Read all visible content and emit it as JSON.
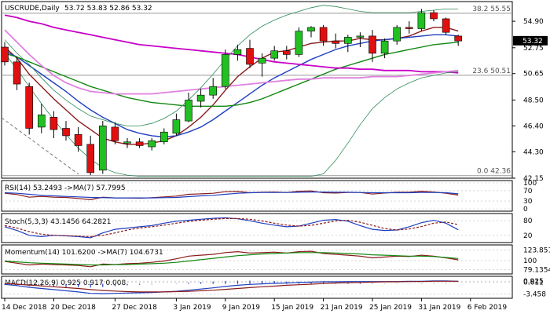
{
  "chart_data": {
    "type": "candlestick",
    "title": "USCRUDE,Daily",
    "ohlc_text": "53.72 53.83 52.86 53.32",
    "last_price": "53.32",
    "price_axis_ticks": [
      "54.90",
      "52.75",
      "50.65",
      "48.50",
      "46.40",
      "44.30",
      "42.15"
    ],
    "price_range": [
      42.15,
      56.5
    ],
    "x_tick_labels": [
      "14 Dec 2018",
      "20 Dec 2018",
      "27 Dec 2018",
      "3 Jan 2019",
      "9 Jan 2019",
      "15 Jan 2019",
      "21 Jan 2019",
      "25 Jan 2019",
      "31 Jan 2019",
      "6 Feb 2019"
    ],
    "x_tick_index": [
      0,
      4,
      9,
      14,
      18,
      22,
      26,
      30,
      34,
      38
    ],
    "fib_levels": [
      {
        "label": "38.2 55.55",
        "value": 55.55
      },
      {
        "label": "23.6 50.51",
        "value": 50.51
      },
      {
        "label": "0.0 42.36",
        "value": 42.36
      }
    ],
    "candles": [
      {
        "o": 52.8,
        "h": 53.2,
        "l": 51.3,
        "c": 51.6
      },
      {
        "o": 51.6,
        "h": 52.0,
        "l": 49.3,
        "c": 49.8
      },
      {
        "o": 49.6,
        "h": 49.9,
        "l": 45.7,
        "c": 46.2
      },
      {
        "o": 46.3,
        "h": 48.2,
        "l": 45.8,
        "c": 47.3
      },
      {
        "o": 47.1,
        "h": 47.6,
        "l": 45.4,
        "c": 46.1
      },
      {
        "o": 46.2,
        "h": 46.8,
        "l": 45.2,
        "c": 45.6
      },
      {
        "o": 45.7,
        "h": 46.3,
        "l": 44.3,
        "c": 44.8
      },
      {
        "o": 44.9,
        "h": 45.6,
        "l": 42.4,
        "c": 42.6
      },
      {
        "o": 42.8,
        "h": 46.8,
        "l": 42.5,
        "c": 46.4
      },
      {
        "o": 46.3,
        "h": 46.7,
        "l": 44.9,
        "c": 45.2
      },
      {
        "o": 45.0,
        "h": 45.4,
        "l": 44.6,
        "c": 45.1
      },
      {
        "o": 45.1,
        "h": 45.4,
        "l": 44.6,
        "c": 44.8
      },
      {
        "o": 44.7,
        "h": 45.4,
        "l": 44.4,
        "c": 45.2
      },
      {
        "o": 45.1,
        "h": 46.2,
        "l": 44.9,
        "c": 45.9
      },
      {
        "o": 45.8,
        "h": 47.4,
        "l": 45.6,
        "c": 46.9
      },
      {
        "o": 46.8,
        "h": 49.1,
        "l": 46.7,
        "c": 48.5
      },
      {
        "o": 48.4,
        "h": 49.4,
        "l": 47.9,
        "c": 48.9
      },
      {
        "o": 48.9,
        "h": 50.3,
        "l": 48.6,
        "c": 49.6
      },
      {
        "o": 49.6,
        "h": 52.6,
        "l": 49.4,
        "c": 52.2
      },
      {
        "o": 52.2,
        "h": 53.0,
        "l": 51.7,
        "c": 52.6
      },
      {
        "o": 52.7,
        "h": 53.4,
        "l": 51.1,
        "c": 51.4
      },
      {
        "o": 51.5,
        "h": 52.3,
        "l": 50.4,
        "c": 51.9
      },
      {
        "o": 51.9,
        "h": 52.9,
        "l": 51.7,
        "c": 52.5
      },
      {
        "o": 52.5,
        "h": 52.9,
        "l": 51.8,
        "c": 52.2
      },
      {
        "o": 52.2,
        "h": 54.4,
        "l": 52.0,
        "c": 54.1
      },
      {
        "o": 54.1,
        "h": 54.5,
        "l": 53.6,
        "c": 54.4
      },
      {
        "o": 54.4,
        "h": 54.6,
        "l": 52.9,
        "c": 53.3
      },
      {
        "o": 53.3,
        "h": 53.9,
        "l": 52.7,
        "c": 53.1
      },
      {
        "o": 53.1,
        "h": 53.8,
        "l": 52.4,
        "c": 53.6
      },
      {
        "o": 53.6,
        "h": 54.0,
        "l": 52.8,
        "c": 53.7
      },
      {
        "o": 53.7,
        "h": 54.2,
        "l": 51.6,
        "c": 52.3
      },
      {
        "o": 52.3,
        "h": 53.5,
        "l": 51.9,
        "c": 53.3
      },
      {
        "o": 53.3,
        "h": 54.6,
        "l": 53.0,
        "c": 54.4
      },
      {
        "o": 54.4,
        "h": 54.9,
        "l": 53.9,
        "c": 54.3
      },
      {
        "o": 54.3,
        "h": 55.9,
        "l": 54.1,
        "c": 55.6
      },
      {
        "o": 55.6,
        "h": 55.8,
        "l": 54.9,
        "c": 55.1
      },
      {
        "o": 55.1,
        "h": 55.2,
        "l": 53.8,
        "c": 54.0
      },
      {
        "o": 53.7,
        "h": 53.8,
        "l": 52.9,
        "c": 53.3
      }
    ],
    "overlays": [
      {
        "name": "ma_short",
        "color": "#8b1a1a",
        "values": [
          52.8,
          51.9,
          50.6,
          49.6,
          48.6,
          47.7,
          46.8,
          46.1,
          45.4,
          45.1,
          44.9,
          44.9,
          45.0,
          45.2,
          45.6,
          46.3,
          47.1,
          48.1,
          49.3,
          50.4,
          51.2,
          51.9,
          52.4,
          52.5,
          52.8,
          53.1,
          53.2,
          53.3,
          53.3,
          53.5,
          53.4,
          53.4,
          53.5,
          53.7,
          54.1,
          54.4,
          54.4,
          54.1
        ]
      },
      {
        "name": "ma_medium",
        "color": "#1f3fbf",
        "values": [
          52.5,
          52.0,
          51.3,
          50.6,
          49.9,
          49.2,
          48.4,
          47.7,
          47.1,
          46.6,
          46.1,
          45.8,
          45.6,
          45.5,
          45.6,
          45.9,
          46.3,
          46.9,
          47.6,
          48.3,
          49.0,
          49.7,
          50.3,
          50.8,
          51.3,
          51.8,
          52.2,
          52.6,
          52.9,
          53.1,
          53.3,
          53.4,
          53.5,
          53.6,
          53.7,
          53.8,
          53.8,
          53.7
        ]
      },
      {
        "name": "ma_long",
        "color": "#118811",
        "values": [
          52.3,
          52.0,
          51.6,
          51.2,
          50.8,
          50.4,
          50.0,
          49.6,
          49.3,
          49.0,
          48.7,
          48.5,
          48.3,
          48.2,
          48.1,
          48.0,
          48.0,
          48.0,
          48.0,
          48.1,
          48.3,
          48.6,
          49.0,
          49.4,
          49.8,
          50.2,
          50.6,
          51.0,
          51.3,
          51.6,
          51.9,
          52.2,
          52.4,
          52.6,
          52.8,
          53.0,
          53.1,
          53.2
        ]
      },
      {
        "name": "ma_magenta",
        "color": "#c800c8",
        "values": [
          55.4,
          55.2,
          54.9,
          54.7,
          54.4,
          54.2,
          54.0,
          53.8,
          53.6,
          53.4,
          53.2,
          53.0,
          52.9,
          52.8,
          52.7,
          52.6,
          52.5,
          52.4,
          52.3,
          52.2,
          52.0,
          51.8,
          51.6,
          51.5,
          51.4,
          51.3,
          51.2,
          51.1,
          51.1,
          51.0,
          51.0,
          50.9,
          50.9,
          50.9,
          50.8,
          50.8,
          50.8,
          50.7
        ]
      },
      {
        "name": "ma_pink",
        "color": "#e080e0",
        "values": [
          54.2,
          53.2,
          52.2,
          51.3,
          50.5,
          49.9,
          49.5,
          49.2,
          49.1,
          49.0,
          49.0,
          49.0,
          49.0,
          49.1,
          49.2,
          49.3,
          49.4,
          49.5,
          49.6,
          49.7,
          49.8,
          49.9,
          50.0,
          50.1,
          50.2,
          50.2,
          50.3,
          50.3,
          50.3,
          50.3,
          50.4,
          50.4,
          50.4,
          50.5,
          50.6,
          50.7,
          50.8,
          50.9
        ]
      },
      {
        "name": "bb_upper",
        "color": "#2e8b57",
        "values": [
          53.4,
          52.3,
          51.4,
          50.3,
          49.3,
          48.5,
          47.8,
          47.2,
          46.9,
          46.6,
          46.4,
          46.4,
          46.6,
          47.0,
          47.6,
          48.5,
          49.5,
          50.6,
          51.8,
          52.9,
          53.8,
          54.5,
          55.0,
          55.4,
          55.7,
          56.0,
          56.2,
          56.1,
          55.9,
          55.7,
          55.6,
          55.6,
          55.6,
          55.6,
          55.7,
          55.8,
          55.9,
          55.9
        ]
      },
      {
        "name": "bb_lower",
        "color": "#2e8b57",
        "values": [
          52.3,
          51.0,
          49.6,
          48.2,
          46.9,
          45.7,
          44.6,
          43.7,
          43.0,
          42.6,
          42.4,
          42.3,
          42.3,
          42.3,
          42.3,
          42.3,
          42.3,
          42.3,
          42.3,
          42.3,
          42.3,
          42.3,
          42.3,
          42.3,
          42.3,
          42.3,
          42.5,
          43.6,
          45.0,
          46.5,
          47.8,
          48.7,
          49.4,
          49.9,
          50.3,
          50.5,
          50.7,
          50.8
        ]
      }
    ],
    "indicators": [
      {
        "label": "RSI(14) 53.2493 ->MA(7) 57.7995",
        "ticks": [
          "100",
          "70",
          "30",
          "0"
        ],
        "range": [
          0,
          100
        ],
        "tick_values": [
          100,
          70,
          30,
          0
        ],
        "series": [
          {
            "color": "#8b1a1a",
            "values": [
              60,
              55,
              45,
              48,
              45,
              44,
              40,
              35,
              45,
              42,
              42,
              41,
              43,
              46,
              49,
              56,
              58,
              60,
              66,
              67,
              62,
              64,
              65,
              63,
              68,
              69,
              62,
              61,
              63,
              63,
              57,
              61,
              64,
              64,
              68,
              65,
              60,
              53
            ]
          },
          {
            "color": "#1f3fbf",
            "values": [
              62,
              60,
              56,
              52,
              50,
              48,
              46,
              44,
              43,
              42,
              42,
              42,
              42,
              43,
              44,
              47,
              50,
              52,
              56,
              60,
              62,
              63,
              63,
              63,
              64,
              65,
              65,
              64,
              64,
              63,
              62,
              62,
              62,
              62,
              63,
              63,
              62,
              58
            ]
          }
        ]
      },
      {
        "label": "Stoch(5,3,3) 43.1456 64.2821",
        "ticks": [
          "80",
          "20"
        ],
        "range": [
          0,
          100
        ],
        "tick_values": [
          80,
          20
        ],
        "series": [
          {
            "color": "#1f3fbf",
            "values": [
              55,
              40,
              20,
              15,
              20,
              18,
              15,
              10,
              30,
              45,
              50,
              55,
              60,
              70,
              78,
              82,
              86,
              90,
              92,
              88,
              80,
              70,
              62,
              55,
              58,
              70,
              82,
              85,
              78,
              60,
              45,
              40,
              42,
              55,
              72,
              82,
              70,
              43
            ]
          },
          {
            "color": "#8b1a1a",
            "values": [
              60,
              50,
              35,
              25,
              20,
              18,
              17,
              15,
              20,
              30,
              42,
              50,
              55,
              62,
              70,
              77,
              82,
              86,
              89,
              89,
              86,
              79,
              70,
              62,
              58,
              61,
              70,
              79,
              82,
              74,
              61,
              48,
              42,
              46,
              56,
              70,
              75,
              64
            ]
          }
        ]
      },
      {
        "label": "Momentum(14) 101.6200 ->MA(7) 104.6731",
        "ticks": [
          "123.8513",
          "100",
          "79.1354"
        ],
        "range": [
          75,
          130
        ],
        "tick_values": [
          123.8513,
          100,
          79.1354
        ],
        "series": [
          {
            "color": "#8b1a1a",
            "values": [
              98,
              94,
              90,
              92,
              91,
              90,
              89,
              86,
              92,
              91,
              93,
              94,
              96,
              99,
              104,
              110,
              112,
              114,
              118,
              120,
              117,
              118,
              119,
              117,
              120,
              121,
              116,
              114,
              112,
              110,
              106,
              108,
              110,
              109,
              112,
              110,
              106,
              101.6
            ]
          },
          {
            "color": "#118811",
            "values": [
              99,
              97,
              95,
              94,
              93,
              92,
              91,
              90,
              90,
              91,
              91,
              92,
              93,
              94,
              96,
              99,
              102,
              105,
              108,
              111,
              113,
              115,
              116,
              117,
              118,
              118,
              118,
              117,
              116,
              115,
              113,
              112,
              111,
              110,
              110,
              109,
              107,
              104.7
            ]
          }
        ]
      },
      {
        "label": "MACD(12,26,9) 0.925 0.917 0.008",
        "ticks": [
          "0.611",
          "0.925",
          "-3.458"
        ],
        "range": [
          -4.2,
          1.8
        ],
        "tick_values": [
          0.611,
          0.925,
          -3.458
        ],
        "series": [
          {
            "color": "#1f3fbf",
            "values": [
              -0.2,
              -0.6,
              -1.2,
              -1.6,
              -2.0,
              -2.4,
              -2.8,
              -3.3,
              -3.4,
              -3.3,
              -3.2,
              -3.1,
              -3.0,
              -2.8,
              -2.6,
              -2.2,
              -1.8,
              -1.4,
              -0.9,
              -0.5,
              -0.2,
              0.0,
              0.2,
              0.3,
              0.5,
              0.6,
              0.7,
              0.7,
              0.8,
              0.8,
              0.8,
              0.8,
              0.8,
              0.9,
              0.9,
              1.0,
              1.0,
              0.9
            ]
          },
          {
            "color": "#8b1a1a",
            "values": [
              0.1,
              -0.1,
              -0.4,
              -0.7,
              -1.0,
              -1.3,
              -1.6,
              -2.0,
              -2.3,
              -2.5,
              -2.7,
              -2.8,
              -2.8,
              -2.8,
              -2.7,
              -2.6,
              -2.4,
              -2.2,
              -1.9,
              -1.6,
              -1.3,
              -1.0,
              -0.8,
              -0.5,
              -0.3,
              -0.1,
              0.1,
              0.3,
              0.4,
              0.5,
              0.6,
              0.7,
              0.7,
              0.8,
              0.8,
              0.9,
              0.9,
              0.9
            ]
          }
        ],
        "histogram": {
          "color": "#1f3fbf",
          "values": [
            -0.3,
            -0.5,
            -0.8,
            -0.9,
            -1.0,
            -1.1,
            -1.2,
            -1.3,
            -1.1,
            -0.8,
            -0.5,
            -0.3,
            -0.2,
            0.0,
            0.1,
            0.4,
            0.6,
            0.8,
            1.0,
            1.1,
            1.1,
            1.0,
            1.0,
            0.8,
            0.8,
            0.7,
            0.6,
            0.4,
            0.4,
            0.3,
            0.2,
            0.1,
            0.1,
            0.1,
            0.1,
            0.1,
            0.1,
            0.0
          ]
        }
      }
    ]
  }
}
